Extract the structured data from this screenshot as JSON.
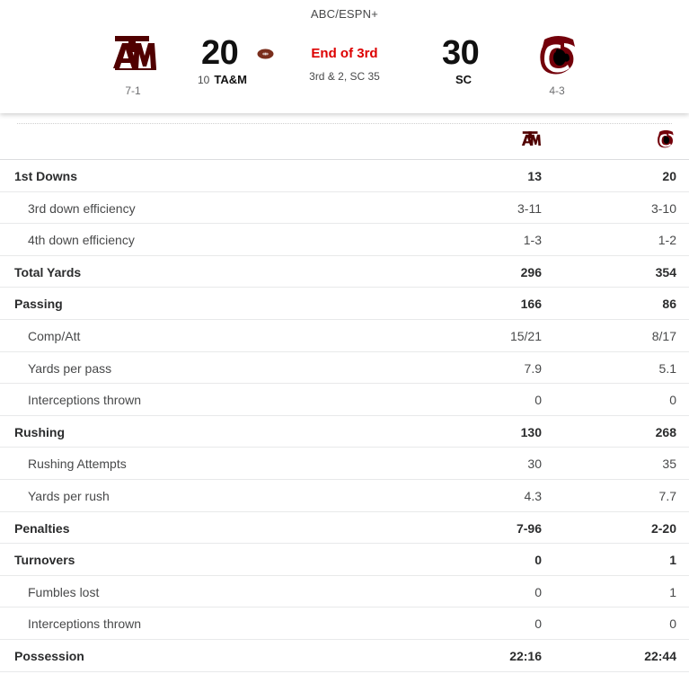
{
  "header": {
    "network": "ABC/ESPN+",
    "away": {
      "name": "TA&M",
      "rank": "10",
      "score": "20",
      "record": "7-1",
      "color": "#500000",
      "logo_icon": "texas-am-logo-icon"
    },
    "home": {
      "name": "SC",
      "score": "30",
      "record": "4-3",
      "color": "#73000a",
      "logo_icon": "south-carolina-gamecock-logo-icon"
    },
    "status": "End of 3rd",
    "down_distance": "3rd & 2, SC 35",
    "status_color": "#dd0000",
    "possession_icon": "football-icon"
  },
  "stats": [
    {
      "label": "1st Downs",
      "away": "13",
      "home": "20",
      "level": "main"
    },
    {
      "label": "3rd down efficiency",
      "away": "3-11",
      "home": "3-10",
      "level": "sub"
    },
    {
      "label": "4th down efficiency",
      "away": "1-3",
      "home": "1-2",
      "level": "sub"
    },
    {
      "label": "Total Yards",
      "away": "296",
      "home": "354",
      "level": "main"
    },
    {
      "label": "Passing",
      "away": "166",
      "home": "86",
      "level": "main"
    },
    {
      "label": "Comp/Att",
      "away": "15/21",
      "home": "8/17",
      "level": "sub"
    },
    {
      "label": "Yards per pass",
      "away": "7.9",
      "home": "5.1",
      "level": "sub"
    },
    {
      "label": "Interceptions thrown",
      "away": "0",
      "home": "0",
      "level": "sub"
    },
    {
      "label": "Rushing",
      "away": "130",
      "home": "268",
      "level": "main"
    },
    {
      "label": "Rushing Attempts",
      "away": "30",
      "home": "35",
      "level": "sub"
    },
    {
      "label": "Yards per rush",
      "away": "4.3",
      "home": "7.7",
      "level": "sub"
    },
    {
      "label": "Penalties",
      "away": "7-96",
      "home": "2-20",
      "level": "main"
    },
    {
      "label": "Turnovers",
      "away": "0",
      "home": "1",
      "level": "main"
    },
    {
      "label": "Fumbles lost",
      "away": "0",
      "home": "1",
      "level": "sub"
    },
    {
      "label": "Interceptions thrown",
      "away": "0",
      "home": "0",
      "level": "sub"
    },
    {
      "label": "Possession",
      "away": "22:16",
      "home": "22:44",
      "level": "main"
    }
  ]
}
